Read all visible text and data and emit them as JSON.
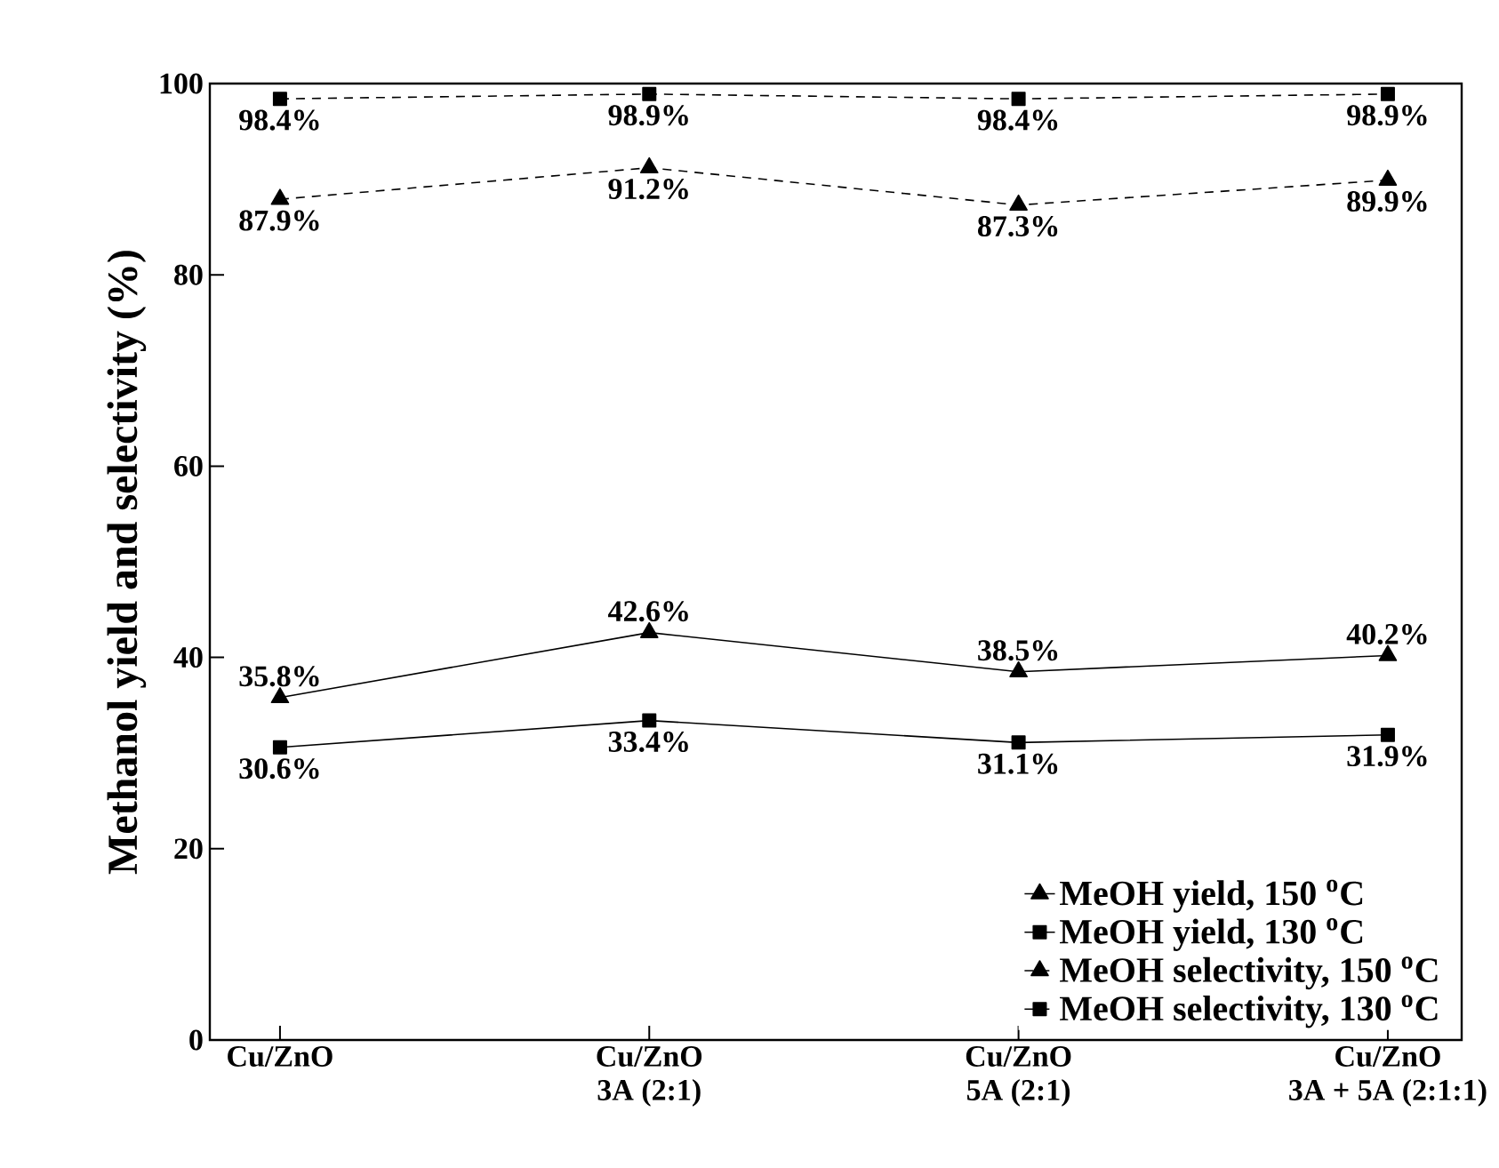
{
  "chart_data": {
    "type": "line",
    "ylabel": "Methanol yield and selectivity (%)",
    "categories": [
      "Cu/ZnO",
      "Cu/ZnO\n3A (2:1)",
      "Cu/ZnO\n5A (2:1)",
      "Cu/ZnO\n3A + 5A (2:1:1)"
    ],
    "series": [
      {
        "name": "MeOH yield, 150 $^{o}$C",
        "color": "#000000",
        "marker": "triangle",
        "line_style": "solid",
        "values": [
          35.8,
          42.6,
          38.5,
          40.2
        ],
        "value_labels": [
          "35.8%",
          "42.6%",
          "38.5%",
          "40.2%"
        ]
      },
      {
        "name": "MeOH yield, 130 $^{o}$C",
        "color": "#000000",
        "marker": "square",
        "line_style": "solid",
        "values": [
          30.6,
          33.4,
          31.1,
          31.9
        ],
        "value_labels": [
          "30.6%",
          "33.4%",
          "31.1%",
          "31.9%"
        ]
      },
      {
        "name": "MeOH selectivity, 150 $^{o}$C",
        "color": "#000000",
        "marker": "triangle",
        "line_style": "dashed",
        "values": [
          87.9,
          91.2,
          87.3,
          89.9
        ],
        "value_labels": [
          "87.9%",
          "91.2%",
          "87.3%",
          "89.9%"
        ]
      },
      {
        "name": "MeOH selectivity, 130 $^{o}$C",
        "color": "#000000",
        "marker": "square",
        "line_style": "dashed",
        "values": [
          98.4,
          98.9,
          98.4,
          98.9
        ],
        "value_labels": [
          "98.4%",
          "98.9%",
          "98.4%",
          "98.9%"
        ]
      }
    ],
    "ylim": [
      0,
      100
    ],
    "yticks": [
      0,
      20,
      40,
      60,
      80,
      100
    ],
    "legend": "bottom right",
    "grid": false
  }
}
